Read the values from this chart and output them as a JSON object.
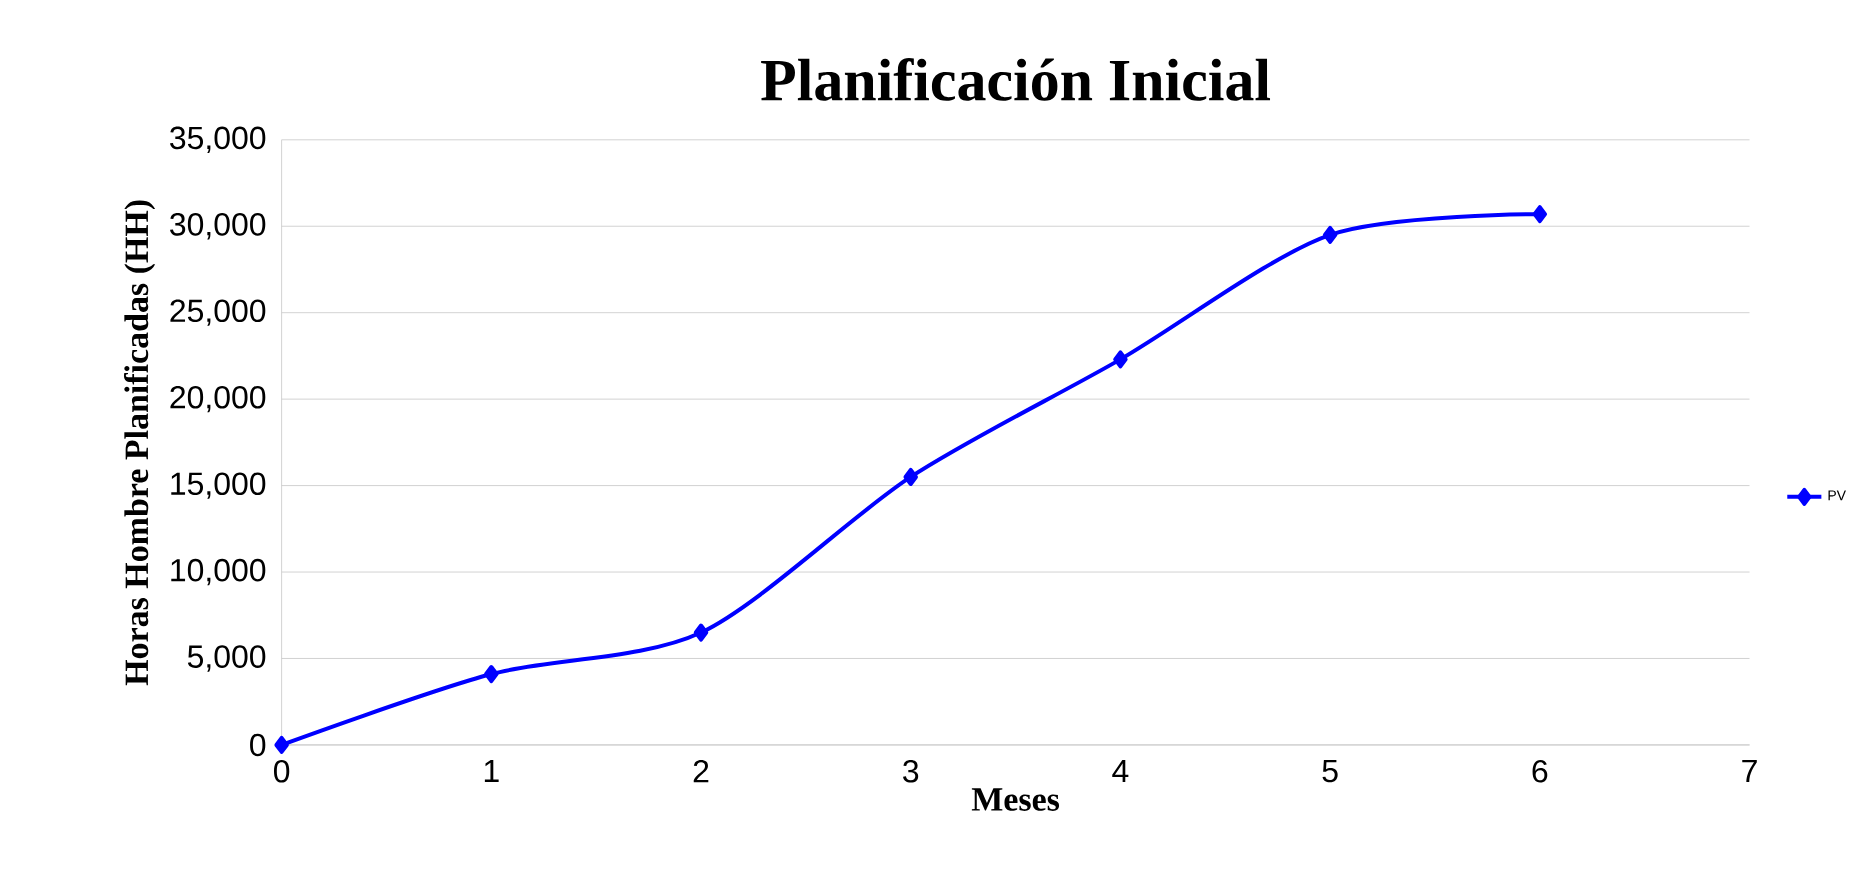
{
  "chart_data": {
    "type": "line",
    "title": "Planificación Inicial",
    "xlabel": "Meses",
    "ylabel": "Horas Hombre Planificadas (HH)",
    "x": [
      0,
      1,
      2,
      3,
      4,
      5,
      6
    ],
    "series": [
      {
        "name": "PV",
        "color": "#0000ff",
        "values": [
          0,
          4100,
          6500,
          15500,
          22300,
          29500,
          30700
        ]
      }
    ],
    "xlim": [
      0,
      7
    ],
    "xticks": [
      0,
      1,
      2,
      3,
      4,
      5,
      6,
      7
    ],
    "ylim": [
      0,
      35000
    ],
    "yticks": [
      {
        "value": 0,
        "label": "0"
      },
      {
        "value": 5000,
        "label": "5,000"
      },
      {
        "value": 10000,
        "label": "10,000"
      },
      {
        "value": 15000,
        "label": "15,000"
      },
      {
        "value": 20000,
        "label": "20,000"
      },
      {
        "value": 25000,
        "label": "25,000"
      },
      {
        "value": 30000,
        "label": "30,000"
      },
      {
        "value": 35000,
        "label": "35,000"
      }
    ],
    "grid": "y",
    "legend": "right",
    "marker": "diamond",
    "line_style": "solid"
  }
}
